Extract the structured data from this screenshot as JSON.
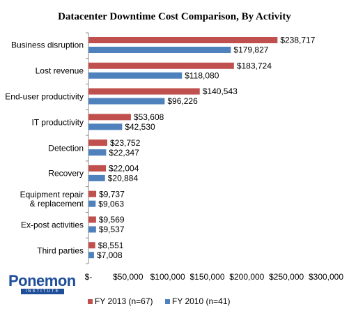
{
  "chart_data": {
    "type": "bar",
    "orientation": "horizontal",
    "title": "Datacenter Downtime Cost Comparison, By Activity",
    "categories": [
      "Business disruption",
      "Lost revenue",
      "End-user productivity",
      "IT productivity",
      "Detection",
      "Recovery",
      "Equipment repair\n& replacement",
      "Ex-post activities",
      "Third parties"
    ],
    "series": [
      {
        "name": "FY 2013 (n=67)",
        "color": "#c0504d",
        "values": [
          238717,
          183724,
          140543,
          53608,
          23752,
          22004,
          9737,
          9569,
          8551
        ],
        "value_labels": [
          "$238,717",
          "$183,724",
          "$140,543",
          "$53,608",
          "$23,752",
          "$22,004",
          "$9,737",
          "$9,569",
          "$8,551"
        ]
      },
      {
        "name": "FY 2010 (n=41)",
        "color": "#4f81bd",
        "values": [
          179827,
          118080,
          96226,
          42530,
          22347,
          20884,
          9063,
          9537,
          7008
        ],
        "value_labels": [
          "$179,827",
          "$118,080",
          "$96,226",
          "$42,530",
          "$22,347",
          "$20,884",
          "$9,063",
          "$9,537",
          "$7,008"
        ]
      }
    ],
    "xlim": [
      0,
      300000
    ],
    "xticks": [
      {
        "value": 0,
        "label": "$-"
      },
      {
        "value": 50000,
        "label": "$50,000"
      },
      {
        "value": 100000,
        "label": "$100,000"
      },
      {
        "value": 150000,
        "label": "$150,000"
      },
      {
        "value": 200000,
        "label": "$200,000"
      },
      {
        "value": 250000,
        "label": "$250,000"
      },
      {
        "value": 300000,
        "label": "$300,000"
      }
    ],
    "grid": false,
    "legend": "bottom"
  },
  "logo": {
    "name": "Ponemon",
    "tagline": "INSTITUTE"
  }
}
